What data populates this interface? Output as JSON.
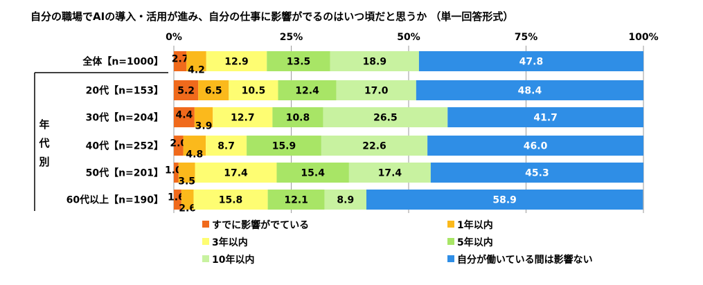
{
  "chart_data": {
    "type": "bar",
    "orientation": "horizontal",
    "stacked": "percent",
    "title": "自分の職場でAIの導入・活用が進み、自分の仕事に影響がでるのはいつ頃だと思うか （単一回答形式）",
    "xlim": [
      0,
      100
    ],
    "x_ticks": [
      "0%",
      "25%",
      "50%",
      "75%",
      "100%"
    ],
    "legend_position": "bottom",
    "group_label": [
      "年",
      "代",
      "別"
    ],
    "categories": [
      "全体【n=1000】",
      "20代【n=153】",
      "30代【n=204】",
      "40代【n=252】",
      "50代【n=201】",
      "60代以上【n=190】"
    ],
    "series": [
      {
        "name": "すでに影響がでている",
        "color": "#f06a1c",
        "values": [
          2.7,
          5.2,
          4.4,
          2.0,
          1.0,
          1.6
        ]
      },
      {
        "name": "1年以内",
        "color": "#fbb91c",
        "values": [
          4.2,
          6.5,
          3.9,
          4.8,
          3.5,
          2.6
        ]
      },
      {
        "name": "3年以内",
        "color": "#fefd72",
        "values": [
          12.9,
          10.5,
          12.7,
          8.7,
          17.4,
          15.8
        ]
      },
      {
        "name": "5年以内",
        "color": "#a8e566",
        "values": [
          13.5,
          12.4,
          10.8,
          15.9,
          15.4,
          12.1
        ]
      },
      {
        "name": "10年以内",
        "color": "#c8f2a0",
        "values": [
          18.9,
          17.0,
          26.5,
          22.6,
          17.4,
          8.9
        ]
      },
      {
        "name": "自分が働いている間は影響ない",
        "color": "#2f8ee6",
        "values": [
          47.8,
          48.4,
          41.7,
          46.0,
          45.3,
          58.9
        ]
      }
    ]
  }
}
